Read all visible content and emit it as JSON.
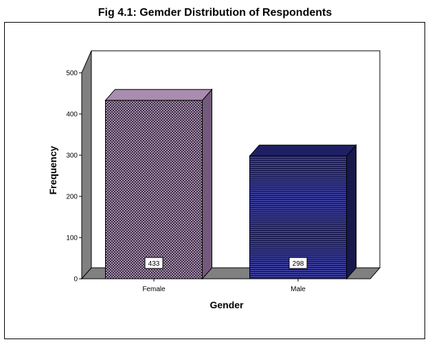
{
  "chart_data": {
    "type": "bar",
    "title": "Fig 4.1: Gemder Distribution of Respondents",
    "xlabel": "Gender",
    "ylabel": "Frequency",
    "categories": [
      "Female",
      "Male"
    ],
    "values": [
      433,
      298
    ],
    "data_labels": [
      "433",
      "298"
    ],
    "ylim": [
      0,
      500
    ],
    "yticks": [
      "0",
      "100",
      "200",
      "300",
      "400",
      "500"
    ],
    "grid": false,
    "legend": "none",
    "three_d": true,
    "colors": {
      "female_front": "#8c6e96",
      "female_top": "#a88db0",
      "female_side": "#735a7c",
      "male_front": "#2a2b7a",
      "male_top": "#1f2064",
      "male_side": "#17184c",
      "wall_side": "#808080",
      "floor": "#808080"
    }
  }
}
